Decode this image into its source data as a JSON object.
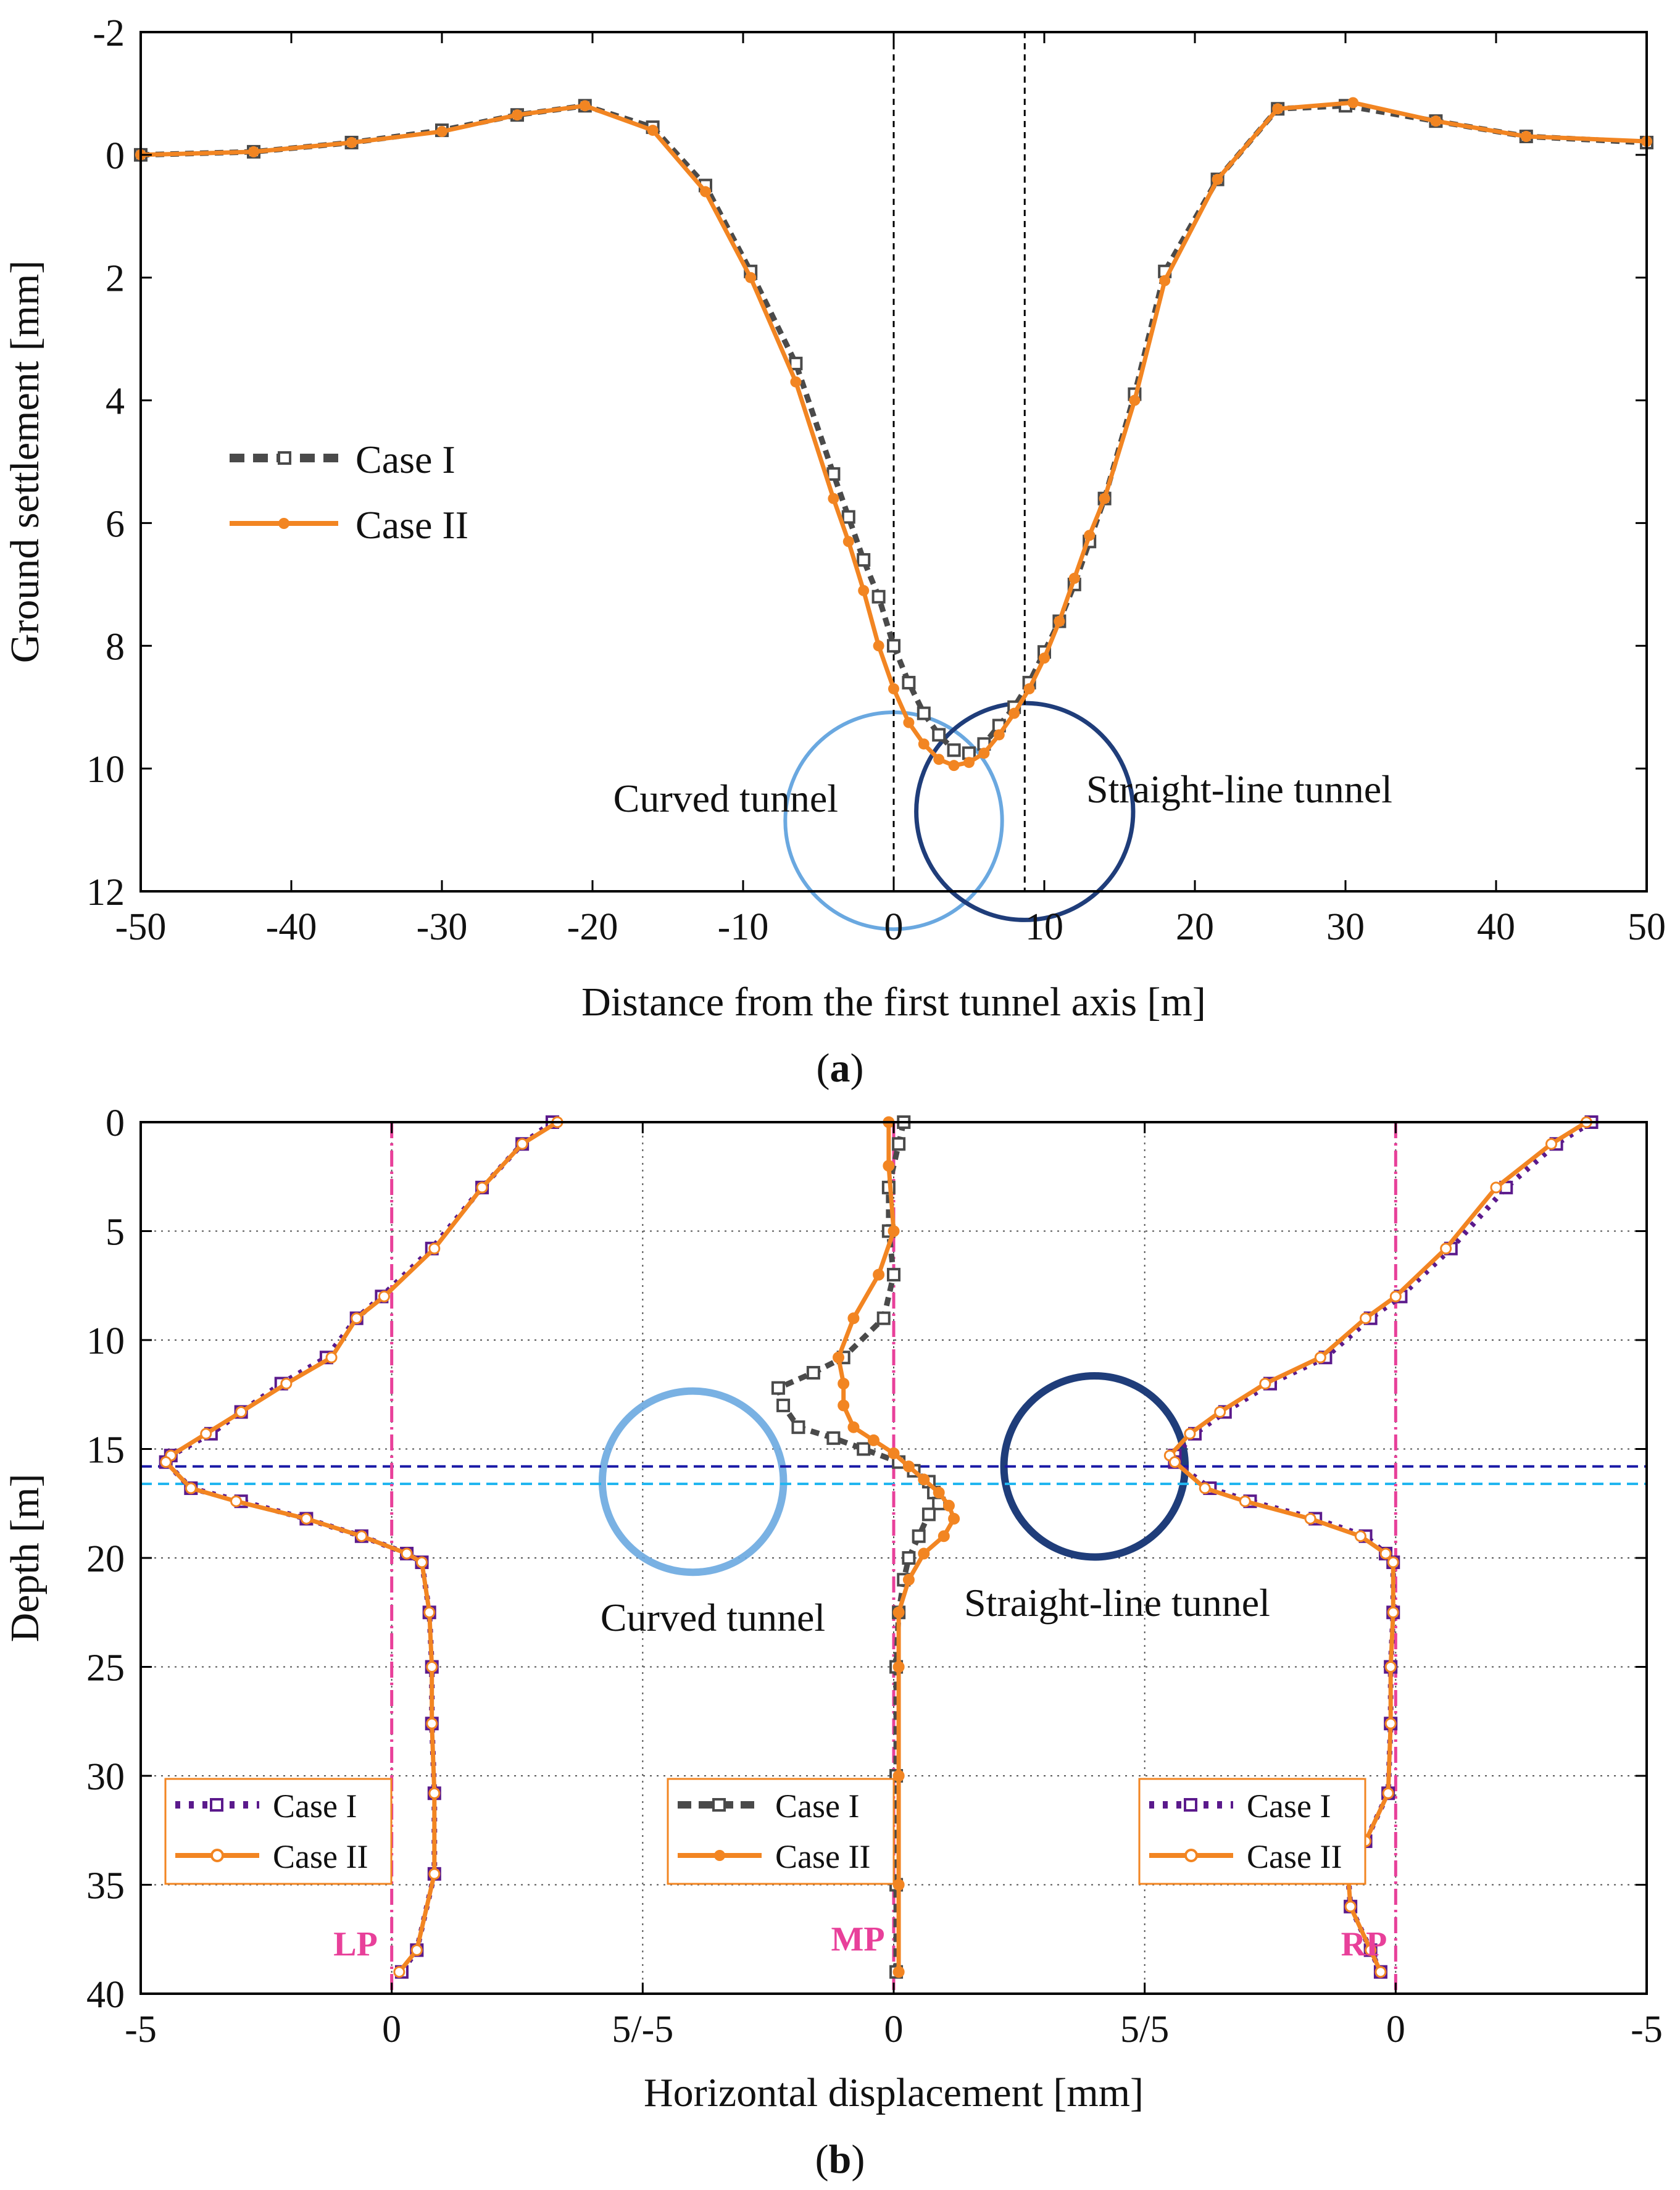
{
  "colors": {
    "case1_gray": "#4a4a4a",
    "case1_purple": "#5b1a8c",
    "case2_orange": "#f28522",
    "axis_line_pink": "#e8409a",
    "label_pink": "#e8409a",
    "curved_tunnel_blue": "#6aa8e0",
    "straight_tunnel_navy": "#1f3d7a",
    "level_line_dark_blue": "#1a1aa6",
    "level_line_cyan": "#21b6f0"
  },
  "chart_data": [
    {
      "id": "a",
      "type": "line",
      "panel_label": "a",
      "xlabel": "Distance from the first tunnel axis [m]",
      "ylabel": "Ground settlement [mm]",
      "xlim": [
        -50,
        50
      ],
      "ylim": [
        -2,
        12
      ],
      "y_inverted": true,
      "xticks": [
        "-50",
        "-40",
        "-30",
        "-20",
        "-10",
        "0",
        "10",
        "20",
        "30",
        "40",
        "50"
      ],
      "yticks": [
        "-2",
        "0",
        "2",
        "4",
        "6",
        "8",
        "10",
        "12"
      ],
      "grid": false,
      "vertical_reference_lines": [
        0,
        8.7
      ],
      "legend_position": "middle-left",
      "annotations": [
        "Curved tunnel",
        "Straight-line tunnel"
      ],
      "tunnels": [
        {
          "name": "Curved tunnel",
          "center_x": 0,
          "center_y": 10.85,
          "radius": 0.72
        },
        {
          "name": "Straight-line tunnel",
          "center_x": 8.7,
          "center_y": 10.7,
          "radius": 0.72
        }
      ],
      "series": [
        {
          "name": "Case I",
          "style": "dashed-square",
          "x": [
            -50,
            -42.5,
            -36,
            -30,
            -25,
            -20.5,
            -16,
            -12.5,
            -9.5,
            -6.5,
            -4,
            -3,
            -2,
            -1,
            0,
            1,
            2,
            3,
            4,
            5,
            6,
            7,
            8,
            9,
            10,
            11,
            12,
            13,
            14,
            16,
            18,
            21.5,
            25.5,
            30,
            36,
            42,
            50
          ],
          "y": [
            0.0,
            -0.05,
            -0.2,
            -0.4,
            -0.65,
            -0.8,
            -0.45,
            0.5,
            1.9,
            3.4,
            5.2,
            5.9,
            6.6,
            7.2,
            8.0,
            8.6,
            9.1,
            9.45,
            9.7,
            9.75,
            9.6,
            9.3,
            9.0,
            8.6,
            8.1,
            7.6,
            7.0,
            6.3,
            5.6,
            3.9,
            1.9,
            0.4,
            -0.75,
            -0.8,
            -0.55,
            -0.3,
            -0.2
          ]
        },
        {
          "name": "Case II",
          "style": "solid-dot",
          "x": [
            -50,
            -42.5,
            -36,
            -30,
            -25,
            -20.5,
            -16,
            -12.5,
            -9.5,
            -6.5,
            -4,
            -3,
            -2,
            -1,
            0,
            1,
            2,
            3,
            4,
            5,
            6,
            7,
            8,
            9,
            10,
            11,
            12,
            13,
            14,
            16,
            18,
            21.5,
            25.5,
            30.5,
            36,
            42,
            50
          ],
          "y": [
            0.0,
            -0.05,
            -0.2,
            -0.38,
            -0.65,
            -0.8,
            -0.4,
            0.6,
            2.0,
            3.7,
            5.6,
            6.3,
            7.1,
            8.0,
            8.7,
            9.25,
            9.6,
            9.85,
            9.95,
            9.9,
            9.75,
            9.45,
            9.1,
            8.7,
            8.2,
            7.6,
            6.9,
            6.2,
            5.6,
            4.0,
            2.05,
            0.4,
            -0.75,
            -0.85,
            -0.55,
            -0.3,
            -0.22
          ]
        }
      ]
    },
    {
      "id": "b",
      "type": "line",
      "panel_label": "b",
      "xlabel": "Horizontal displacement [mm]",
      "ylabel": "Depth [m]",
      "ylim": [
        0,
        40
      ],
      "y_inverted": true,
      "xticks": [
        "-5",
        "0",
        "5/-5",
        "0",
        "5/5",
        "0",
        "-5"
      ],
      "yticks": [
        "0",
        "5",
        "10",
        "15",
        "20",
        "25",
        "30",
        "35",
        "40"
      ],
      "grid": true,
      "horizontal_reference_lines": [
        15.8,
        16.6
      ],
      "annotations": [
        "Curved tunnel",
        "Straight-line tunnel"
      ],
      "tunnels": [
        {
          "name": "Curved tunnel",
          "center_x_axis_units": -4,
          "center_depth": 16.5,
          "radius_depth": 4.2
        },
        {
          "name": "Straight-line tunnel",
          "center_x_axis_units": 4,
          "center_depth": 15.8,
          "radius_depth": 4.2
        }
      ],
      "subpanels": [
        {
          "name": "LP",
          "label": "LP",
          "axis_range": [
            -5,
            5
          ],
          "legend": [
            "Case I",
            "Case II"
          ],
          "series": [
            {
              "name": "Case I",
              "style": "dotted-half-square",
              "depth": [
                0,
                1,
                3,
                5.8,
                8,
                9,
                10.8,
                12,
                13.3,
                14.3,
                15.3,
                15.6,
                16.8,
                17.4,
                18.2,
                19,
                19.8,
                20.2,
                22.5,
                25,
                27.6,
                30.8,
                34.5,
                38,
                39
              ],
              "disp": [
                3.2,
                2.6,
                1.8,
                0.8,
                -0.2,
                -0.7,
                -1.3,
                -2.2,
                -3.0,
                -3.6,
                -4.4,
                -4.5,
                -4.0,
                -3.0,
                -1.7,
                -0.6,
                0.3,
                0.6,
                0.75,
                0.8,
                0.8,
                0.85,
                0.85,
                0.5,
                0.2
              ]
            },
            {
              "name": "Case II",
              "style": "solid-open-circle",
              "depth": [
                0,
                1,
                3,
                5.8,
                8,
                9,
                10.8,
                12,
                13.3,
                14.3,
                15.3,
                15.6,
                16.8,
                17.4,
                18.2,
                19,
                19.8,
                20.2,
                22.5,
                25,
                27.6,
                30.8,
                34.5,
                38,
                39
              ],
              "disp": [
                3.3,
                2.6,
                1.8,
                0.85,
                -0.15,
                -0.7,
                -1.2,
                -2.1,
                -3.0,
                -3.7,
                -4.4,
                -4.5,
                -4.0,
                -3.1,
                -1.7,
                -0.6,
                0.3,
                0.6,
                0.75,
                0.8,
                0.8,
                0.85,
                0.85,
                0.5,
                0.15
              ]
            }
          ]
        },
        {
          "name": "MP",
          "label": "MP",
          "axis_range": [
            -5,
            5
          ],
          "legend": [
            "Case I",
            "Case II"
          ],
          "series": [
            {
              "name": "Case I",
              "style": "dashed-square",
              "depth": [
                0,
                1,
                3,
                5,
                7,
                9,
                10.8,
                11.5,
                12.2,
                13,
                14,
                14.5,
                15,
                15.6,
                16,
                16.5,
                17,
                17.5,
                18,
                19,
                20,
                21,
                22.5,
                25,
                30,
                35,
                39
              ],
              "disp": [
                0.2,
                0.1,
                -0.1,
                -0.1,
                0.0,
                -0.2,
                -1.0,
                -1.6,
                -2.3,
                -2.2,
                -1.9,
                -1.2,
                -0.6,
                0.1,
                0.4,
                0.7,
                0.8,
                0.9,
                0.7,
                0.5,
                0.3,
                0.2,
                0.1,
                0.05,
                0.05,
                0.05,
                0.05
              ]
            },
            {
              "name": "Case II",
              "style": "solid-dot",
              "depth": [
                0,
                2,
                5,
                7,
                9,
                10.8,
                12,
                13,
                14,
                14.6,
                15.2,
                15.8,
                16.4,
                17,
                17.6,
                18.2,
                19,
                19.8,
                21,
                22.5,
                25,
                30,
                35,
                39
              ],
              "disp": [
                -0.1,
                -0.1,
                0.0,
                -0.3,
                -0.8,
                -1.1,
                -1.0,
                -1.0,
                -0.8,
                -0.4,
                0.0,
                0.3,
                0.6,
                0.9,
                1.1,
                1.2,
                1.0,
                0.6,
                0.3,
                0.1,
                0.1,
                0.1,
                0.1,
                0.1
              ]
            }
          ]
        },
        {
          "name": "RP",
          "label": "RP",
          "axis_range": [
            5,
            -5
          ],
          "legend": [
            "Case I",
            "Case II"
          ],
          "series": [
            {
              "name": "Case I",
              "style": "dotted-half-square",
              "depth": [
                0,
                1,
                3,
                5.8,
                8,
                9,
                10.8,
                12,
                13.3,
                14.3,
                15.3,
                15.6,
                16.8,
                17.4,
                18.2,
                19,
                19.8,
                20.2,
                22.5,
                25,
                27.6,
                30.8,
                33,
                34.5,
                36,
                38,
                39
              ],
              "disp": [
                -3.9,
                -3.2,
                -2.2,
                -1.1,
                -0.1,
                0.5,
                1.4,
                2.5,
                3.4,
                4.0,
                4.4,
                4.4,
                3.7,
                2.9,
                1.6,
                0.6,
                0.2,
                0.05,
                0.05,
                0.1,
                0.1,
                0.15,
                0.6,
                0.95,
                0.9,
                0.5,
                0.3
              ]
            },
            {
              "name": "Case II",
              "style": "solid-open-circle",
              "depth": [
                0,
                1,
                3,
                5.8,
                8,
                9,
                10.8,
                12,
                13.3,
                14.3,
                15.3,
                15.6,
                16.8,
                17.4,
                18.2,
                19,
                19.8,
                20.2,
                22.5,
                25,
                27.6,
                30.8,
                33,
                34.5,
                36,
                38,
                39
              ],
              "disp": [
                -3.8,
                -3.1,
                -2.0,
                -1.0,
                0.0,
                0.6,
                1.5,
                2.6,
                3.5,
                4.1,
                4.5,
                4.4,
                3.8,
                3.0,
                1.7,
                0.7,
                0.2,
                0.05,
                0.05,
                0.1,
                0.1,
                0.15,
                0.6,
                0.95,
                0.9,
                0.5,
                0.3
              ]
            }
          ]
        }
      ]
    }
  ]
}
